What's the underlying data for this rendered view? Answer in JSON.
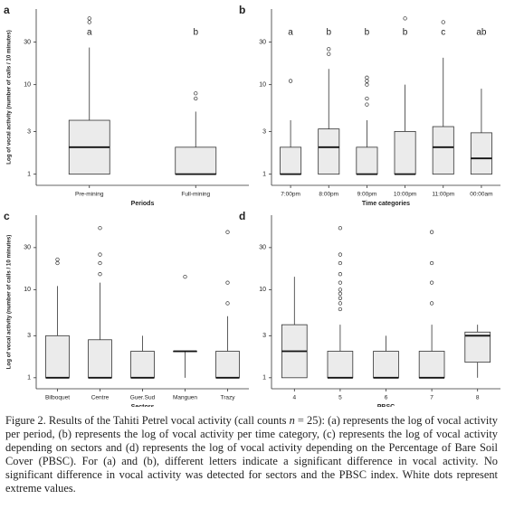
{
  "chart_data": [
    {
      "type": "box",
      "panel_label": "a",
      "ylabel": "Log of vocal activity (number of calls / 10 minutes)",
      "xlabel": "Periods",
      "categories": [
        "Pre-mining",
        "Full-mining"
      ],
      "letters": [
        "a",
        "b"
      ],
      "boxes": [
        {
          "whislo": 1,
          "q1": 1,
          "med": 2,
          "q3": 4,
          "whishi": 26,
          "fliers": [
            50,
            55
          ]
        },
        {
          "whislo": 1,
          "q1": 1,
          "med": 1,
          "q3": 2,
          "whishi": 5,
          "fliers": [
            7,
            8
          ]
        }
      ],
      "ylim": [
        0.75,
        70
      ],
      "yticks": [
        1,
        3,
        10,
        30
      ],
      "log": true,
      "color": "#ebebeb"
    },
    {
      "type": "box",
      "panel_label": "b",
      "xlabel": "Time categories",
      "categories": [
        "7:00pm",
        "8:00pm",
        "9:00pm",
        "10:00pm",
        "11:00pm",
        "00:00am"
      ],
      "letters": [
        "a",
        "b",
        "b",
        "b",
        "c",
        "ab"
      ],
      "boxes": [
        {
          "whislo": 1,
          "q1": 1,
          "med": 1,
          "q3": 2,
          "whishi": 4,
          "fliers": [
            11
          ]
        },
        {
          "whislo": 1,
          "q1": 1,
          "med": 2,
          "q3": 3.2,
          "whishi": 15,
          "fliers": [
            22,
            25
          ]
        },
        {
          "whislo": 1,
          "q1": 1,
          "med": 1,
          "q3": 2,
          "whishi": 4,
          "fliers": [
            6,
            7,
            10,
            11,
            12
          ]
        },
        {
          "whislo": 1,
          "q1": 1,
          "med": 1,
          "q3": 3,
          "whishi": 10,
          "fliers": [
            55
          ]
        },
        {
          "whislo": 1,
          "q1": 1,
          "med": 2,
          "q3": 3.4,
          "whishi": 20,
          "fliers": [
            50
          ]
        },
        {
          "whislo": 1,
          "q1": 1,
          "med": 1.5,
          "q3": 2.9,
          "whishi": 9,
          "fliers": []
        }
      ],
      "ylim": [
        0.75,
        70
      ],
      "yticks": [
        1,
        3,
        10,
        30
      ],
      "log": true,
      "color": "#ebebeb"
    },
    {
      "type": "box",
      "panel_label": "c",
      "ylabel": "Log of vocal activity (number of calls / 10 minutes)",
      "xlabel": "Sectors",
      "categories": [
        "Bilboquet",
        "Centre",
        "Guer.Sud",
        "Manguen",
        "Trazy"
      ],
      "boxes": [
        {
          "whislo": 1,
          "q1": 1,
          "med": 1,
          "q3": 3,
          "whishi": 11,
          "fliers": [
            20,
            22
          ]
        },
        {
          "whislo": 1,
          "q1": 1,
          "med": 1,
          "q3": 2.7,
          "whishi": 12,
          "fliers": [
            15,
            20,
            25,
            50
          ]
        },
        {
          "whislo": 1,
          "q1": 1,
          "med": 1,
          "q3": 2,
          "whishi": 3,
          "fliers": []
        },
        {
          "whislo": 1,
          "q1": 2,
          "med": 2,
          "q3": 2,
          "whishi": 2,
          "fliers": [
            14
          ]
        },
        {
          "whislo": 1,
          "q1": 1,
          "med": 1,
          "q3": 2,
          "whishi": 5,
          "fliers": [
            7,
            12,
            45
          ]
        }
      ],
      "ylim": [
        0.75,
        70
      ],
      "yticks": [
        1,
        3,
        10,
        30
      ],
      "log": true,
      "color": "#ebebeb"
    },
    {
      "type": "box",
      "panel_label": "d",
      "xlabel": "PBSC",
      "categories": [
        "4",
        "5",
        "6",
        "7",
        "8"
      ],
      "boxes": [
        {
          "whislo": 1,
          "q1": 1,
          "med": 2,
          "q3": 4,
          "whishi": 14,
          "fliers": []
        },
        {
          "whislo": 1,
          "q1": 1,
          "med": 1,
          "q3": 2,
          "whishi": 4,
          "fliers": [
            6,
            7,
            8,
            9,
            10,
            12,
            15,
            20,
            25,
            50
          ]
        },
        {
          "whislo": 1,
          "q1": 1,
          "med": 1,
          "q3": 2,
          "whishi": 3,
          "fliers": []
        },
        {
          "whislo": 1,
          "q1": 1,
          "med": 1,
          "q3": 2,
          "whishi": 4,
          "fliers": [
            7,
            12,
            20,
            45
          ]
        },
        {
          "whislo": 1,
          "q1": 1.5,
          "med": 3,
          "q3": 3.3,
          "whishi": 4,
          "fliers": []
        }
      ],
      "ylim": [
        0.75,
        70
      ],
      "yticks": [
        1,
        3,
        10,
        30
      ],
      "log": true,
      "color": "#ebebeb"
    }
  ],
  "caption": [
    "Figure 2.  Results of the Tahiti Petrel vocal activity (call counts ",
    "n",
    " = 25): (a) represents the log of vocal activity per period, (b) represents the log of vocal activity per time category, (c) represents the log of vocal activity depending on sectors and (d) represents the log of vocal activity depending on the Percentage of Bare Soil Cover (PBSC). For (a) and (b), different letters indicate a significant difference in vocal activity. No significant difference in vocal activity was detected for sectors and the PBSC index. White dots represent extreme values."
  ]
}
